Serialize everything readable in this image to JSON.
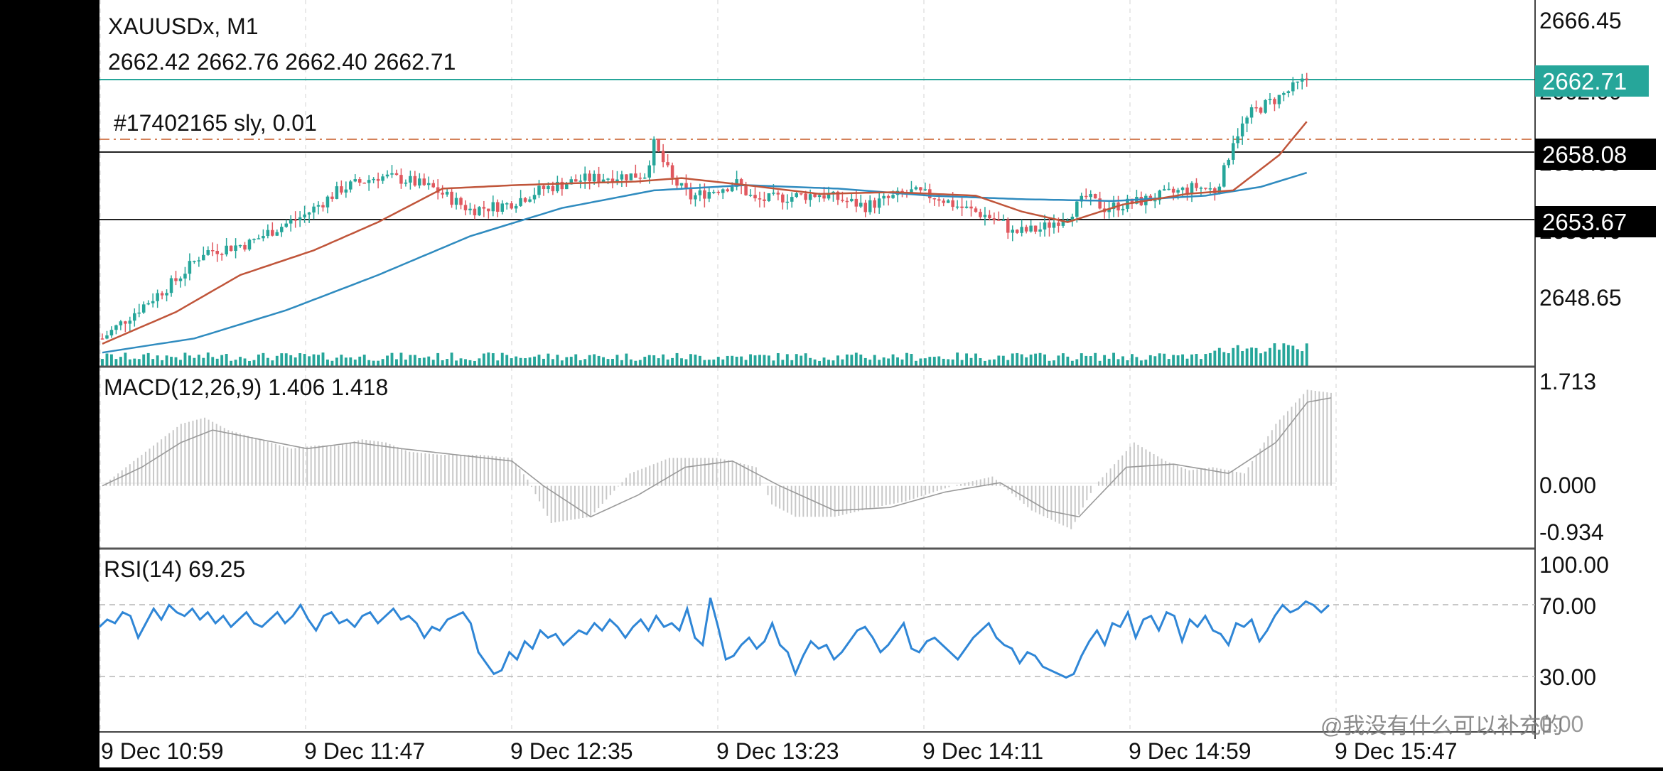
{
  "header": {
    "symbol_timeframe": "XAUUSDx, M1",
    "ohlc": "2662.42 2662.76 2662.40 2662.71",
    "order_label": "#17402165 sly, 0.01"
  },
  "price_panel": {
    "axis_ticks": [
      "2666.45",
      "2648.65"
    ],
    "overlapped_ticks": [
      "2662.00",
      "2657.00",
      "2653.40"
    ],
    "current_price": "2662.71",
    "level_labels": [
      "2658.08",
      "2653.67"
    ],
    "order_price": 2657.65,
    "hline_up": 2658.08,
    "hline_down": 2653.67
  },
  "macd_panel": {
    "title": "MACD(12,26,9) 1.406 1.418",
    "axis_ticks": [
      "1.713",
      "0.000",
      "-0.934"
    ]
  },
  "rsi_panel": {
    "title": "RSI(14) 69.25",
    "axis_ticks": [
      "100.00",
      "70.00",
      "30.00",
      "0.00"
    ]
  },
  "time_axis": {
    "labels": [
      "9 Dec 10:59",
      "9 Dec 11:47",
      "9 Dec 12:35",
      "9 Dec 13:23",
      "9 Dec 14:11",
      "9 Dec 14:59",
      "9 Dec 15:47"
    ]
  },
  "watermark": "@我没有什么可以补充的",
  "colors": {
    "bull": "#26a69a",
    "bear": "#e0585f",
    "ma_fast": "#c0553a",
    "ma_slow": "#2f8bbf",
    "rsi": "#2f86d6",
    "macd_hist": "#c8c8c8",
    "macd_signal": "#9a9a9a",
    "volume": "#26a69a",
    "current_line": "#26a69a",
    "order_line": "#d4825a"
  },
  "chart_data": [
    {
      "type": "candlestick",
      "title": "XAUUSDx, M1",
      "ylim": [
        2646.4,
        2667.2
      ],
      "x_labels": [
        "9 Dec 10:59",
        "9 Dec 11:47",
        "9 Dec 12:35",
        "9 Dec 13:23",
        "9 Dec 14:11",
        "9 Dec 14:59",
        "9 Dec 15:47"
      ],
      "price_path": [
        [
          0,
          2648.0
        ],
        [
          8,
          2649.7
        ],
        [
          16,
          2651.3
        ],
        [
          22,
          2652.9
        ],
        [
          32,
          2653.4
        ],
        [
          36,
          2654.0
        ],
        [
          44,
          2655.0
        ],
        [
          52,
          2656.5
        ],
        [
          60,
          2657.2
        ],
        [
          66,
          2657.0
        ],
        [
          72,
          2656.5
        ],
        [
          80,
          2655.3
        ],
        [
          88,
          2655.6
        ],
        [
          96,
          2656.5
        ],
        [
          104,
          2657.0
        ],
        [
          112,
          2657.2
        ],
        [
          118,
          2657.3
        ],
        [
          120,
          2659.0
        ],
        [
          124,
          2657.0
        ],
        [
          128,
          2656.0
        ],
        [
          134,
          2656.5
        ],
        [
          138,
          2656.8
        ],
        [
          142,
          2655.8
        ],
        [
          148,
          2656.0
        ],
        [
          156,
          2656.2
        ],
        [
          166,
          2655.5
        ],
        [
          172,
          2656.0
        ],
        [
          176,
          2656.3
        ],
        [
          182,
          2656.0
        ],
        [
          186,
          2655.5
        ],
        [
          192,
          2655.0
        ],
        [
          196,
          2654.5
        ],
        [
          198,
          2654.0
        ],
        [
          204,
          2654.2
        ],
        [
          210,
          2655.0
        ],
        [
          214,
          2656.0
        ],
        [
          218,
          2655.4
        ],
        [
          226,
          2655.8
        ],
        [
          232,
          2656.2
        ],
        [
          238,
          2656.6
        ],
        [
          242,
          2656.4
        ],
        [
          244,
          2657.5
        ],
        [
          246,
          2659.3
        ],
        [
          250,
          2660.8
        ],
        [
          256,
          2661.7
        ],
        [
          262,
          2662.7
        ]
      ],
      "ma_fast_path": [
        [
          0,
          2647.7
        ],
        [
          16,
          2649.5
        ],
        [
          30,
          2651.6
        ],
        [
          46,
          2653.0
        ],
        [
          60,
          2654.6
        ],
        [
          74,
          2656.5
        ],
        [
          90,
          2656.7
        ],
        [
          102,
          2656.8
        ],
        [
          116,
          2656.9
        ],
        [
          126,
          2657.1
        ],
        [
          140,
          2656.7
        ],
        [
          156,
          2656.2
        ],
        [
          172,
          2656.3
        ],
        [
          190,
          2656.1
        ],
        [
          200,
          2655.2
        ],
        [
          210,
          2654.6
        ],
        [
          222,
          2655.6
        ],
        [
          236,
          2656.2
        ],
        [
          246,
          2656.4
        ],
        [
          256,
          2658.4
        ],
        [
          262,
          2660.3
        ]
      ],
      "ma_slow_path": [
        [
          0,
          2647.2
        ],
        [
          20,
          2648.0
        ],
        [
          40,
          2649.6
        ],
        [
          60,
          2651.6
        ],
        [
          80,
          2653.8
        ],
        [
          100,
          2655.4
        ],
        [
          120,
          2656.4
        ],
        [
          140,
          2656.7
        ],
        [
          160,
          2656.5
        ],
        [
          180,
          2656.1
        ],
        [
          200,
          2655.9
        ],
        [
          220,
          2655.8
        ],
        [
          240,
          2656.1
        ],
        [
          252,
          2656.6
        ],
        [
          262,
          2657.4
        ]
      ],
      "bar_count": 263
    },
    {
      "type": "bar",
      "title": "MACD(12,26,9) 1.406 1.418",
      "ylim": [
        -0.99,
        1.9
      ],
      "series": [
        {
          "name": "MACD",
          "path": [
            [
              0,
              0.0
            ],
            [
              10,
              0.5
            ],
            [
              20,
              1.0
            ],
            [
              26,
              1.1
            ],
            [
              32,
              0.9
            ],
            [
              40,
              0.75
            ],
            [
              48,
              0.6
            ],
            [
              54,
              0.65
            ],
            [
              60,
              0.65
            ],
            [
              66,
              0.75
            ],
            [
              72,
              0.7
            ],
            [
              78,
              0.55
            ],
            [
              86,
              0.5
            ],
            [
              96,
              0.5
            ],
            [
              104,
              0.45
            ],
            [
              108,
              0.1
            ],
            [
              114,
              -0.6
            ],
            [
              124,
              -0.5
            ],
            [
              134,
              0.2
            ],
            [
              144,
              0.45
            ],
            [
              156,
              0.45
            ],
            [
              160,
              0.4
            ],
            [
              166,
              0.3
            ],
            [
              170,
              -0.3
            ],
            [
              176,
              -0.5
            ],
            [
              186,
              -0.5
            ],
            [
              196,
              -0.35
            ],
            [
              204,
              -0.25
            ],
            [
              216,
              0.0
            ],
            [
              226,
              0.15
            ],
            [
              236,
              -0.4
            ],
            [
              246,
              -0.7
            ],
            [
              252,
              0.0
            ],
            [
              262,
              0.7
            ],
            [
              270,
              0.4
            ],
            [
              276,
              0.25
            ],
            [
              282,
              0.3
            ],
            [
              290,
              0.2
            ],
            [
              298,
              1.0
            ],
            [
              306,
              1.55
            ],
            [
              312,
              1.5
            ]
          ]
        },
        {
          "name": "Signal",
          "path": [
            [
              0,
              0.0
            ],
            [
              10,
              0.3
            ],
            [
              20,
              0.7
            ],
            [
              28,
              0.9
            ],
            [
              40,
              0.75
            ],
            [
              52,
              0.6
            ],
            [
              64,
              0.7
            ],
            [
              76,
              0.6
            ],
            [
              90,
              0.5
            ],
            [
              104,
              0.4
            ],
            [
              112,
              0.0
            ],
            [
              124,
              -0.5
            ],
            [
              136,
              -0.15
            ],
            [
              148,
              0.3
            ],
            [
              160,
              0.4
            ],
            [
              172,
              0.0
            ],
            [
              186,
              -0.4
            ],
            [
              200,
              -0.35
            ],
            [
              214,
              -0.1
            ],
            [
              228,
              0.05
            ],
            [
              240,
              -0.4
            ],
            [
              248,
              -0.5
            ],
            [
              260,
              0.3
            ],
            [
              272,
              0.35
            ],
            [
              286,
              0.2
            ],
            [
              298,
              0.7
            ],
            [
              306,
              1.35
            ],
            [
              312,
              1.42
            ]
          ]
        }
      ],
      "zero_line": 0.0
    },
    {
      "type": "line",
      "title": "RSI(14) 69.25",
      "ylim": [
        0,
        100
      ],
      "levels": [
        70,
        30
      ],
      "series": [
        {
          "name": "RSI(14)",
          "values": [
            58,
            62,
            60,
            66,
            64,
            52,
            60,
            68,
            62,
            70,
            66,
            64,
            68,
            62,
            66,
            60,
            64,
            58,
            62,
            66,
            60,
            58,
            62,
            66,
            60,
            64,
            70,
            62,
            56,
            64,
            66,
            60,
            62,
            58,
            64,
            66,
            60,
            64,
            68,
            62,
            64,
            60,
            52,
            58,
            56,
            62,
            64,
            66,
            60,
            44,
            38,
            32,
            34,
            44,
            40,
            50,
            46,
            56,
            52,
            54,
            48,
            52,
            56,
            54,
            60,
            56,
            62,
            58,
            52,
            58,
            62,
            56,
            64,
            58,
            60,
            56,
            68,
            52,
            48,
            74,
            58,
            40,
            42,
            48,
            52,
            46,
            50,
            60,
            48,
            44,
            32,
            42,
            50,
            46,
            48,
            40,
            44,
            50,
            56,
            58,
            52,
            44,
            48,
            54,
            60,
            46,
            44,
            50,
            52,
            48,
            44,
            40,
            46,
            52,
            56,
            60,
            52,
            48,
            46,
            38,
            44,
            42,
            36,
            34,
            32,
            30,
            32,
            42,
            50,
            56,
            48,
            60,
            58,
            66,
            52,
            62,
            64,
            56,
            66,
            64,
            50,
            62,
            58,
            64,
            56,
            54,
            48,
            60,
            58,
            62,
            50,
            56,
            64,
            70,
            66,
            68,
            72,
            70,
            66,
            70
          ]
        }
      ]
    }
  ]
}
